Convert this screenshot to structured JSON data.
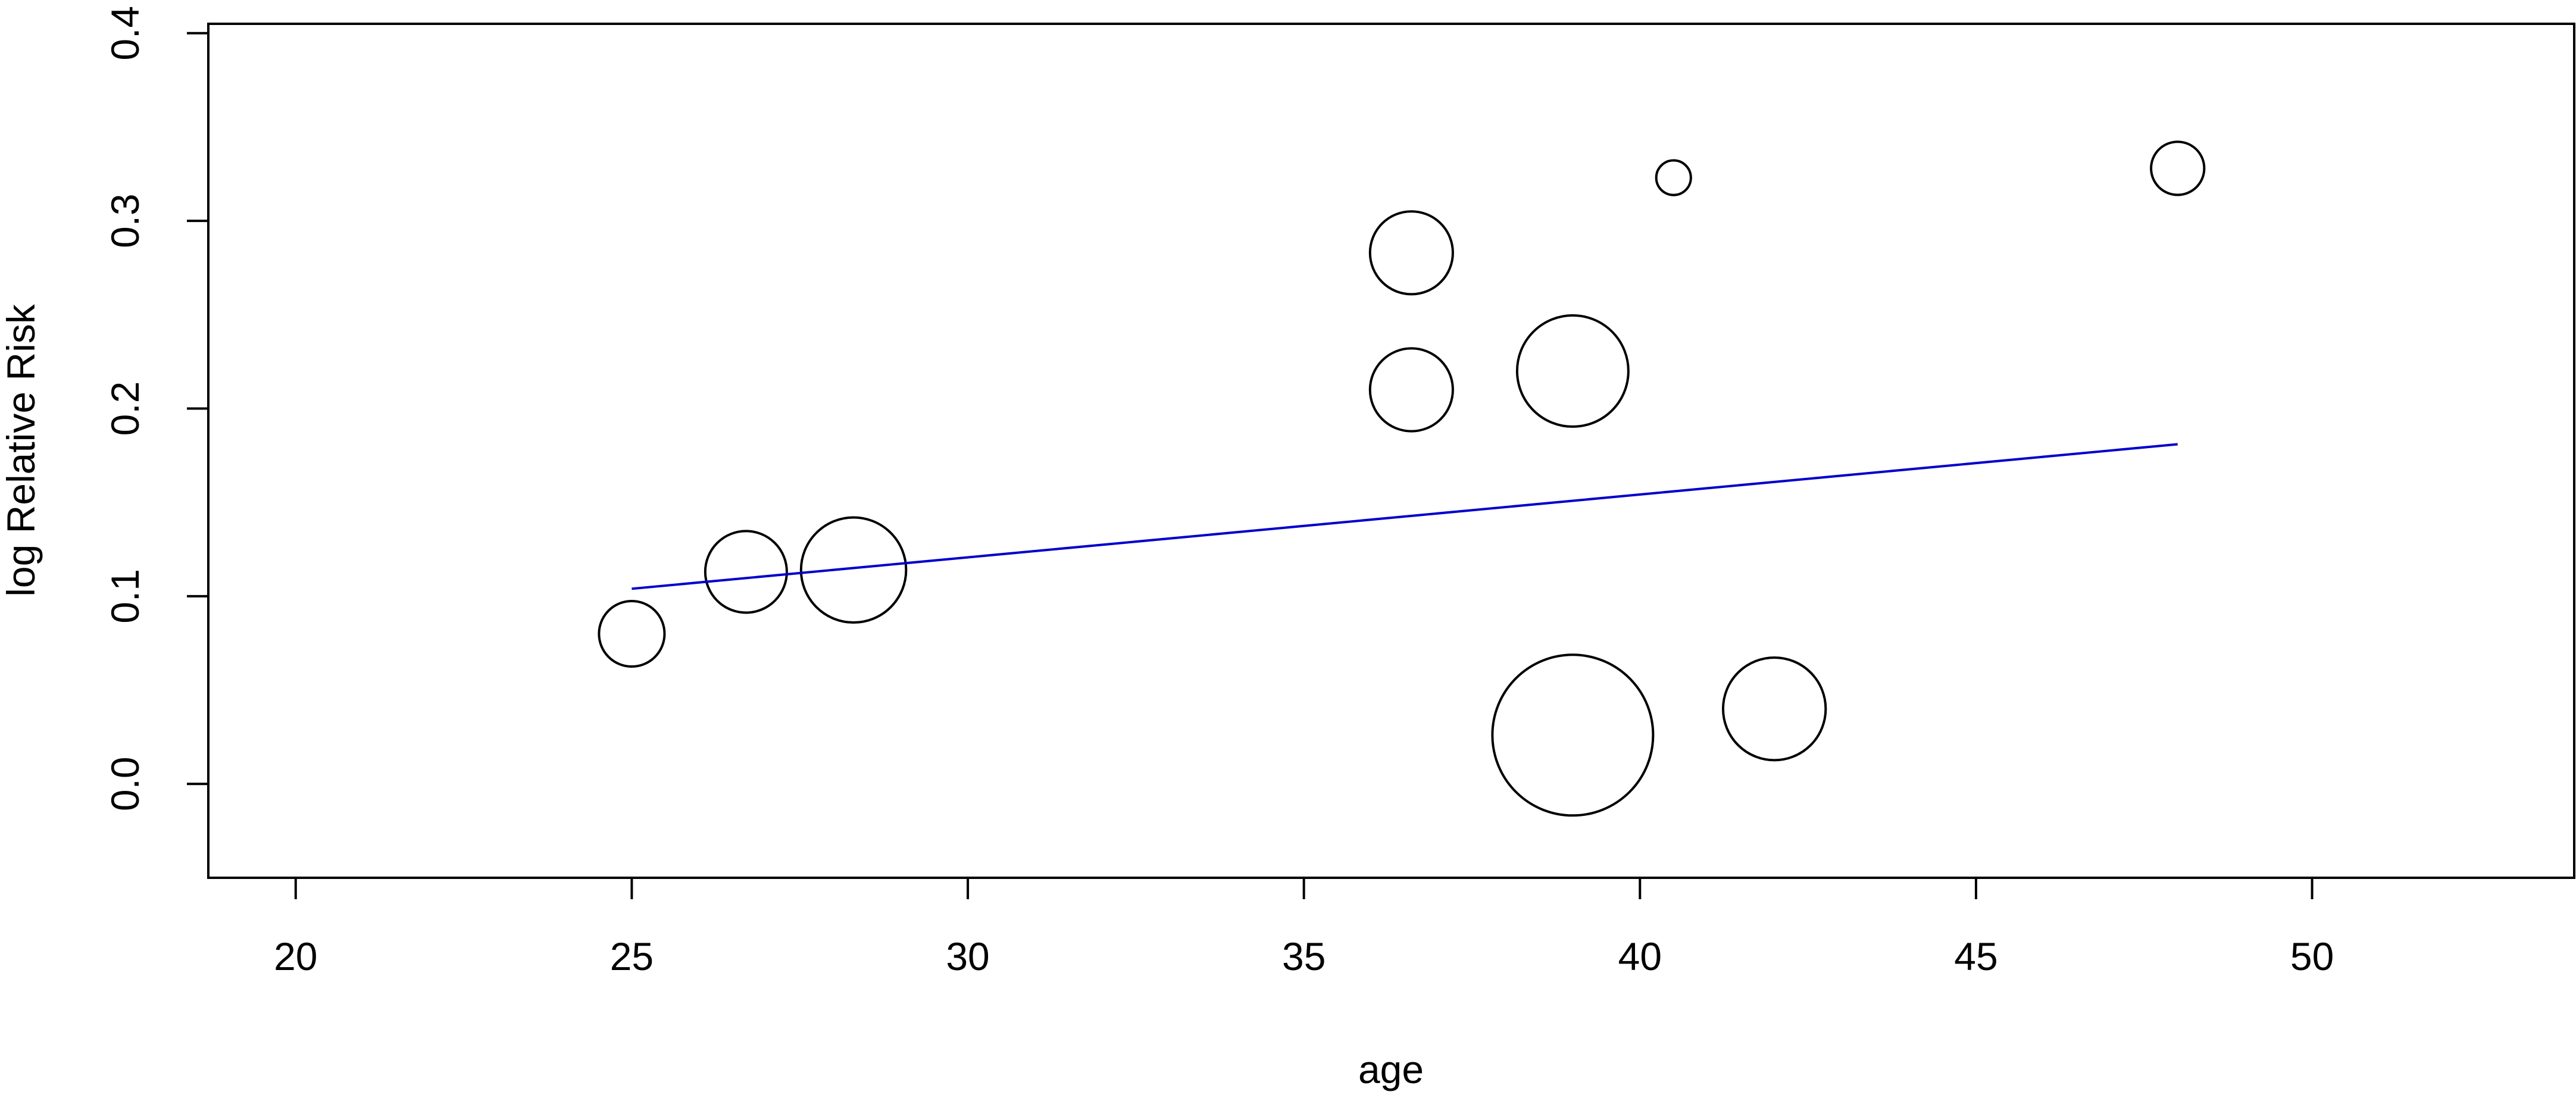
{
  "chart_data": {
    "type": "scatter",
    "title": "",
    "xlabel": "age",
    "ylabel": "log Relative Risk",
    "xlim": [
      18.7,
      53.9
    ],
    "ylim": [
      -0.05,
      0.405
    ],
    "x_ticks": [
      20,
      25,
      30,
      35,
      40,
      45,
      50
    ],
    "y_ticks": [
      0.0,
      0.1,
      0.2,
      0.3,
      0.4
    ],
    "x_tick_labels": [
      "20",
      "25",
      "30",
      "35",
      "40",
      "45",
      "50"
    ],
    "y_tick_labels": [
      "0.0",
      "0.1",
      "0.2",
      "0.3",
      "0.4"
    ],
    "grid": false,
    "legend": "none",
    "point_style": "open circles sized by study weight",
    "points": [
      {
        "x": 25.0,
        "y": 0.08,
        "size": 0.53
      },
      {
        "x": 26.7,
        "y": 0.113,
        "size": 0.66
      },
      {
        "x": 28.3,
        "y": 0.114,
        "size": 0.85
      },
      {
        "x": 36.6,
        "y": 0.283,
        "size": 0.67
      },
      {
        "x": 36.6,
        "y": 0.21,
        "size": 0.67
      },
      {
        "x": 39.0,
        "y": 0.22,
        "size": 0.9
      },
      {
        "x": 40.5,
        "y": 0.323,
        "size": 0.28
      },
      {
        "x": 48.0,
        "y": 0.328,
        "size": 0.43
      },
      {
        "x": 39.0,
        "y": 0.026,
        "size": 1.3
      },
      {
        "x": 42.0,
        "y": 0.04,
        "size": 0.83
      }
    ],
    "fit_line": {
      "x": [
        25.0,
        48.0
      ],
      "y": [
        0.104,
        0.181
      ],
      "color": "#0000cc"
    }
  }
}
